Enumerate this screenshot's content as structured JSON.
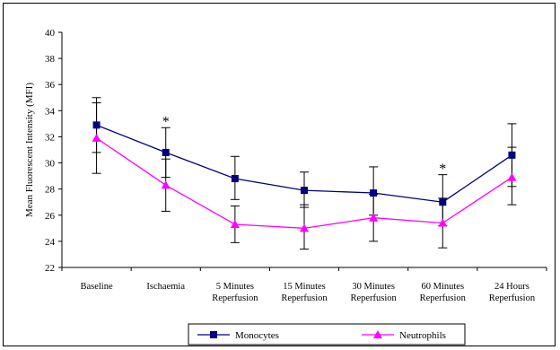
{
  "chart_data": {
    "type": "line",
    "title": "",
    "xlabel": "",
    "ylabel": "Mean Fluorescent Intensity (MFI)",
    "ylim": [
      22,
      40
    ],
    "yticks": [
      22,
      24,
      26,
      28,
      30,
      32,
      34,
      36,
      38,
      40
    ],
    "categories": [
      [
        "Baseline"
      ],
      [
        "Ischaemia"
      ],
      [
        "5 Minutes",
        "Reperfusion"
      ],
      [
        "15 Minutes",
        "Reperfusion"
      ],
      [
        "30 Minutes",
        "Reperfusion"
      ],
      [
        "60 Minutes",
        "Reperfusion"
      ],
      [
        "24 Hours",
        "Reperfusion"
      ]
    ],
    "series": [
      {
        "name": "Monocytes",
        "color": "#000080",
        "marker": "square",
        "values": [
          32.9,
          30.8,
          28.8,
          27.9,
          27.7,
          27.0,
          30.6
        ],
        "err_low": [
          30.8,
          28.9,
          27.2,
          26.6,
          26.0,
          25.2,
          28.2
        ],
        "err_high": [
          35.0,
          32.7,
          30.5,
          29.3,
          29.7,
          29.1,
          33.0
        ]
      },
      {
        "name": "Neutrophils",
        "color": "#ff00ff",
        "marker": "triangle",
        "values": [
          31.9,
          28.3,
          25.3,
          25.0,
          25.8,
          25.4,
          28.9
        ],
        "err_low": [
          29.2,
          26.3,
          23.9,
          23.4,
          24.0,
          23.5,
          26.8
        ],
        "err_high": [
          34.6,
          30.3,
          26.7,
          26.8,
          27.6,
          27.3,
          31.2
        ]
      }
    ],
    "annotations": [
      {
        "text": "*",
        "category_index": 1,
        "y": 33.5
      },
      {
        "text": "*",
        "category_index": 5,
        "y": 29.9
      }
    ],
    "grid": false,
    "legend": "bottom"
  }
}
